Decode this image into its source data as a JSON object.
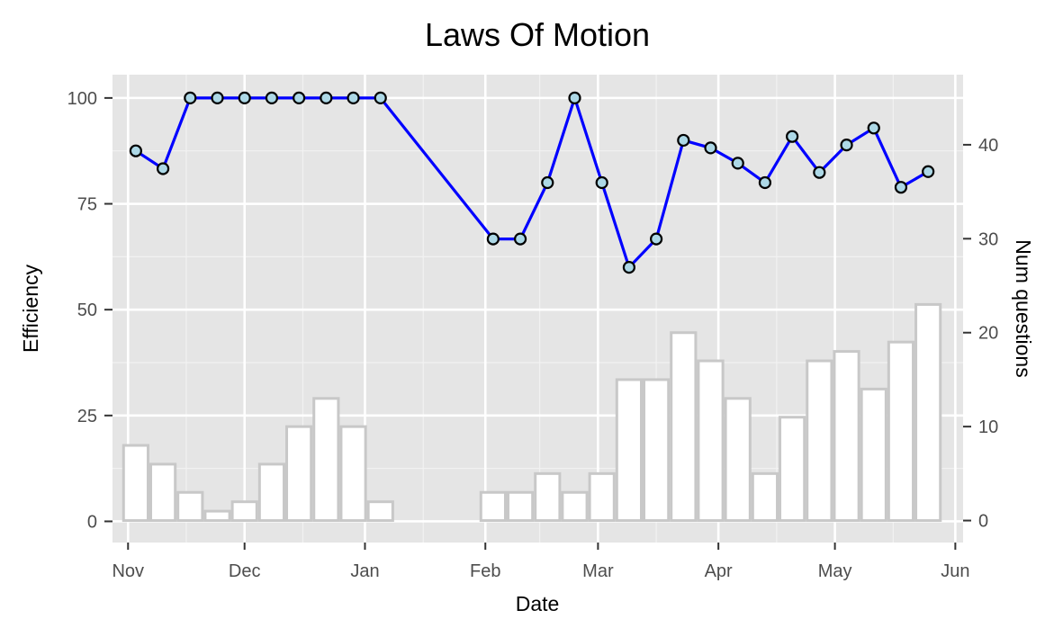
{
  "chart_data": {
    "type": "line",
    "title": "Laws Of Motion",
    "xlabel": "Date",
    "ylabel": "Efficiency",
    "y2label": "Num questions",
    "x_ticks": [
      "Nov",
      "Dec",
      "Jan",
      "Feb",
      "Mar",
      "Apr",
      "May",
      "Jun"
    ],
    "y_ticks": [
      "0",
      "25",
      "50",
      "75",
      "100"
    ],
    "y2_ticks": [
      "0",
      "10",
      "20",
      "30",
      "40"
    ],
    "xlim": [
      "2019-10-28",
      "2020-06-03"
    ],
    "ylim": [
      -5,
      105.5
    ],
    "y2lim": [
      -2.34,
      47.46
    ],
    "grid": true,
    "line_color": "#0000ff",
    "point_fill": "#add8e6",
    "bar_fill": "#ffffff",
    "bar_stroke": "#c8c8c8",
    "panel_bg": "#e5e5e5",
    "efficiency_series": {
      "name": "Efficiency",
      "x": [
        "2019-11-03",
        "2019-11-10",
        "2019-11-17",
        "2019-11-24",
        "2019-12-01",
        "2019-12-08",
        "2019-12-15",
        "2019-12-22",
        "2019-12-29",
        "2020-01-05",
        "2020-02-03",
        "2020-02-10",
        "2020-02-17",
        "2020-02-24",
        "2020-03-02",
        "2020-03-09",
        "2020-03-16",
        "2020-03-23",
        "2020-03-30",
        "2020-04-06",
        "2020-04-13",
        "2020-04-20",
        "2020-04-27",
        "2020-05-04",
        "2020-05-11",
        "2020-05-18",
        "2020-05-25"
      ],
      "y": [
        87.5,
        83.3,
        100,
        100,
        100,
        100,
        100,
        100,
        100,
        100,
        66.7,
        66.7,
        80,
        100,
        80,
        60,
        66.7,
        90,
        88.2,
        84.6,
        80,
        90.9,
        82.4,
        88.9,
        92.9,
        78.9,
        82.6
      ]
    },
    "questions_series": {
      "name": "Num questions",
      "x": [
        "2019-11-03",
        "2019-11-10",
        "2019-11-17",
        "2019-11-24",
        "2019-12-01",
        "2019-12-08",
        "2019-12-15",
        "2019-12-22",
        "2019-12-29",
        "2020-01-05",
        "2020-02-03",
        "2020-02-10",
        "2020-02-17",
        "2020-02-24",
        "2020-03-02",
        "2020-03-09",
        "2020-03-16",
        "2020-03-23",
        "2020-03-30",
        "2020-04-06",
        "2020-04-13",
        "2020-04-20",
        "2020-04-27",
        "2020-05-04",
        "2020-05-11",
        "2020-05-18",
        "2020-05-25"
      ],
      "y": [
        8,
        6,
        3,
        1,
        2,
        6,
        10,
        13,
        10,
        2,
        3,
        3,
        5,
        3,
        5,
        15,
        15,
        20,
        17,
        13,
        5,
        11,
        17,
        18,
        14,
        19,
        23
      ]
    }
  }
}
